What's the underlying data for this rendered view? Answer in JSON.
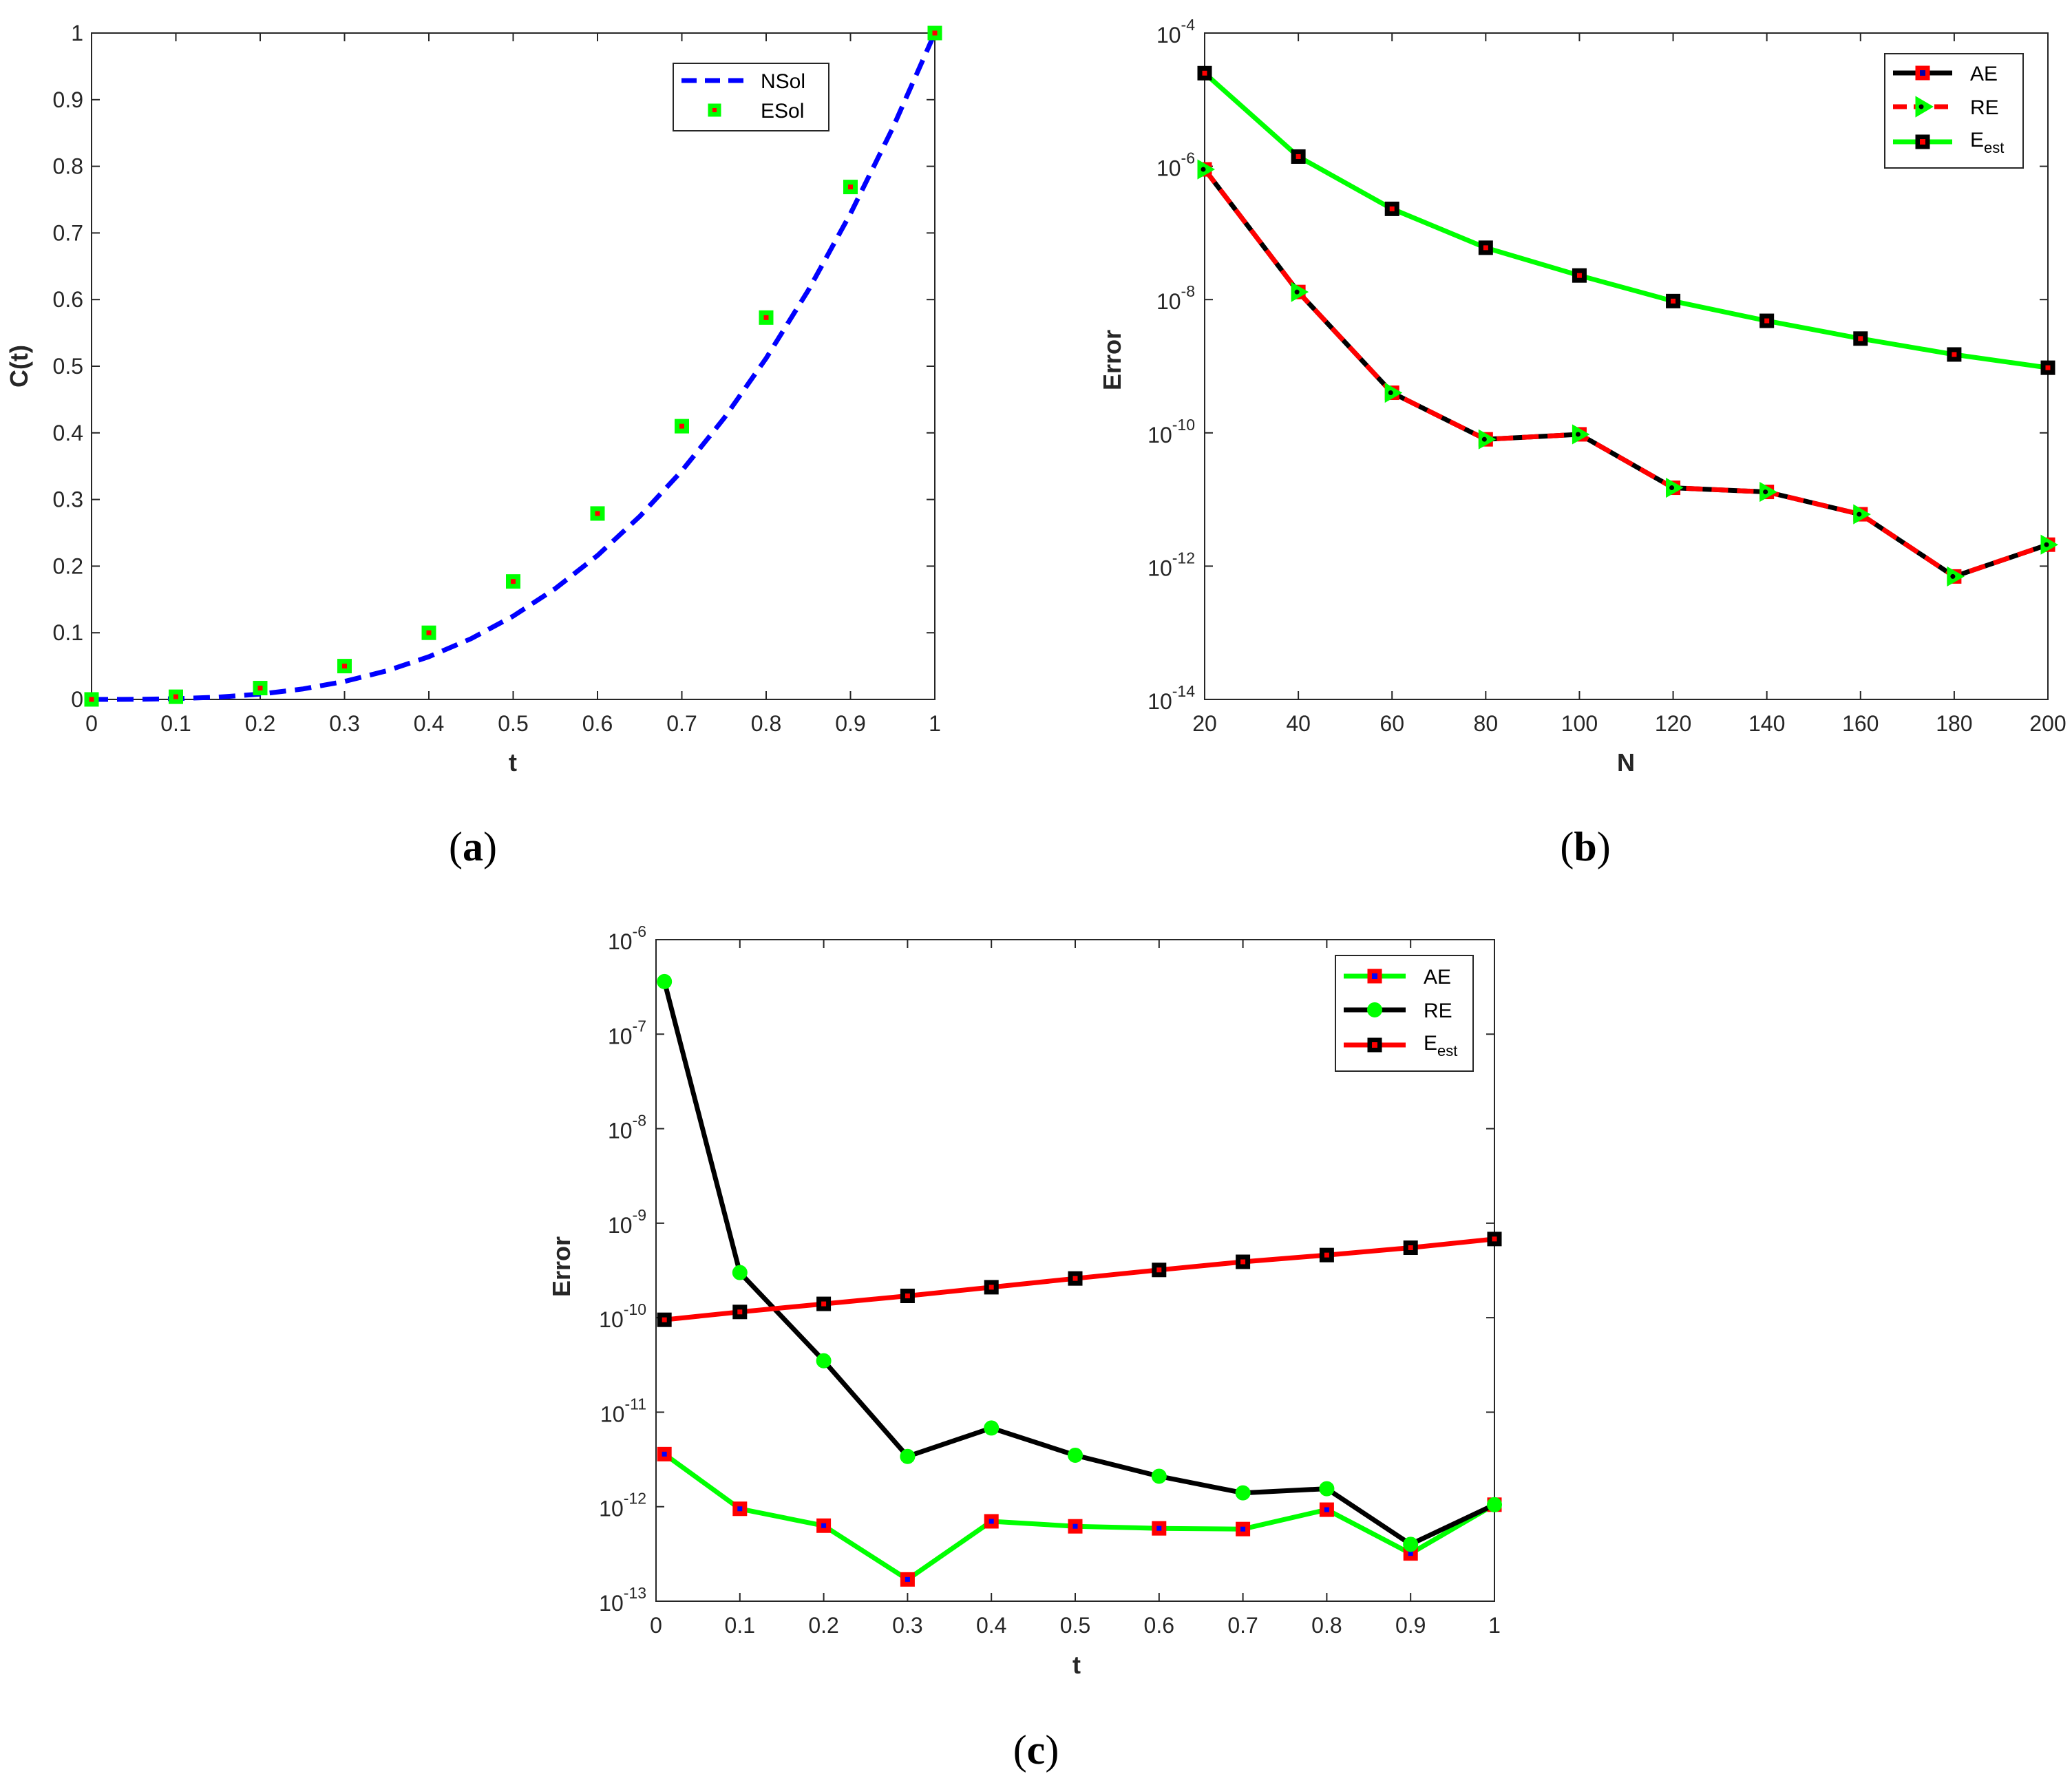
{
  "chart_data": [
    {
      "id": "a",
      "type": "line",
      "caption_letter": "a",
      "xlabel": "t",
      "ylabel": "C(t)",
      "yscale": "linear",
      "xlim": [
        0,
        1
      ],
      "ylim": [
        0,
        1
      ],
      "xticks": [
        0,
        0.1,
        0.2,
        0.3,
        0.4,
        0.5,
        0.6,
        0.7,
        0.8,
        0.9,
        1
      ],
      "xtick_labels": [
        "0",
        "0.1",
        "0.2",
        "0.3",
        "0.4",
        "0.5",
        "0.6",
        "0.7",
        "0.8",
        "0.9",
        "1"
      ],
      "yticks": [
        0,
        0.1,
        0.2,
        0.3,
        0.4,
        0.5,
        0.6,
        0.7,
        0.8,
        0.9,
        1
      ],
      "ytick_labels": [
        "0",
        "0.1",
        "0.2",
        "0.3",
        "0.4",
        "0.5",
        "0.6",
        "0.7",
        "0.8",
        "0.9",
        "1"
      ],
      "legend_position": "top-right",
      "series": [
        {
          "name": "NSol",
          "name_sub": "",
          "color": "#0000ff",
          "dash": true,
          "line": true,
          "marker": "none",
          "marker_fill": "none",
          "marker_edge": "none",
          "marker_center": "none",
          "x": [
            0,
            0.05,
            0.1,
            0.15,
            0.2,
            0.25,
            0.3,
            0.35,
            0.4,
            0.45,
            0.5,
            0.55,
            0.6,
            0.65,
            0.7,
            0.75,
            0.8,
            0.85,
            0.9,
            0.95,
            1
          ],
          "y": [
            0,
            0.000125,
            0.001,
            0.003375,
            0.008,
            0.015625,
            0.027,
            0.042875,
            0.064,
            0.091125,
            0.125,
            0.166375,
            0.216,
            0.274625,
            0.343,
            0.421875,
            0.512,
            0.614125,
            0.729,
            0.857375,
            1
          ]
        },
        {
          "name": "ESol",
          "name_sub": "",
          "color": "#00ff00",
          "dash": false,
          "line": false,
          "marker": "square",
          "marker_fill": "#00ff00",
          "marker_edge": "#00ff00",
          "marker_center": "#ff0000",
          "x": [
            0,
            0.1,
            0.2,
            0.3,
            0.4,
            0.5,
            0.6,
            0.7,
            0.8,
            0.9,
            1
          ],
          "y": [
            0,
            0.004,
            0.017,
            0.05,
            0.1,
            0.177,
            0.279,
            0.41,
            0.573,
            0.769,
            1
          ]
        }
      ]
    },
    {
      "id": "b",
      "type": "line",
      "caption_letter": "b",
      "xlabel": "N",
      "ylabel": "Error",
      "yscale": "log",
      "xlim": [
        20,
        200
      ],
      "ylim": [
        1e-14,
        0.0001
      ],
      "xticks": [
        20,
        40,
        60,
        80,
        100,
        120,
        140,
        160,
        180,
        200
      ],
      "xtick_labels": [
        "20",
        "40",
        "60",
        "80",
        "100",
        "120",
        "140",
        "160",
        "180",
        "200"
      ],
      "yticks": [
        -14,
        -12,
        -10,
        -8,
        -6,
        -4
      ],
      "ytick_labels": [
        "-14",
        "-12",
        "-10",
        "-8",
        "-6",
        "-4"
      ],
      "ytick_base": "10",
      "legend_position": "top-right",
      "series": [
        {
          "name": "AE",
          "name_sub": "",
          "color": "#000000",
          "dash": false,
          "line": true,
          "marker": "square",
          "marker_fill": "#ff0000",
          "marker_edge": "#ff0000",
          "marker_center": "#0000aa",
          "x": [
            20,
            40,
            60,
            80,
            100,
            120,
            140,
            160,
            180,
            200
          ],
          "y": [
            9e-07,
            1.3e-08,
            4e-10,
            8e-11,
            9.5e-11,
            1.5e-11,
            1.3e-11,
            6e-12,
            7e-13,
            2.1e-12
          ]
        },
        {
          "name": "RE",
          "name_sub": "",
          "color": "#ff0000",
          "dash": true,
          "line": true,
          "marker": "triangle",
          "marker_fill": "#00ff00",
          "marker_edge": "#00ff00",
          "marker_center": "#000000",
          "x": [
            20,
            40,
            60,
            80,
            100,
            120,
            140,
            160,
            180,
            200
          ],
          "y": [
            9e-07,
            1.3e-08,
            4e-10,
            8e-11,
            9.5e-11,
            1.5e-11,
            1.3e-11,
            6e-12,
            7e-13,
            2.1e-12
          ]
        },
        {
          "name": "E",
          "name_sub": "est",
          "color": "#00ff00",
          "dash": false,
          "line": true,
          "marker": "square",
          "marker_fill": "#000000",
          "marker_edge": "#000000",
          "marker_center": "#ff0000",
          "x": [
            20,
            40,
            60,
            80,
            100,
            120,
            140,
            160,
            180,
            200
          ],
          "y": [
            2.5e-05,
            1.4e-06,
            2.3e-07,
            6e-08,
            2.3e-08,
            9.5e-09,
            4.8e-09,
            2.6e-09,
            1.5e-09,
            9.5e-10
          ]
        }
      ]
    },
    {
      "id": "c",
      "type": "line",
      "caption_letter": "c",
      "xlabel": "t",
      "ylabel": "Error",
      "yscale": "log",
      "xlim": [
        0,
        1
      ],
      "ylim": [
        1e-13,
        1e-06
      ],
      "xticks": [
        0,
        0.1,
        0.2,
        0.3,
        0.4,
        0.5,
        0.6,
        0.7,
        0.8,
        0.9,
        1
      ],
      "xtick_labels": [
        "0",
        "0.1",
        "0.2",
        "0.3",
        "0.4",
        "0.5",
        "0.6",
        "0.7",
        "0.8",
        "0.9",
        "1"
      ],
      "yticks": [
        -13,
        -12,
        -11,
        -10,
        -9,
        -8,
        -7,
        -6
      ],
      "ytick_labels": [
        "-13",
        "-12",
        "-11",
        "-10",
        "-9",
        "-8",
        "-7",
        "-6"
      ],
      "ytick_base": "10",
      "legend_position": "top-right",
      "series": [
        {
          "name": "AE",
          "name_sub": "",
          "color": "#00ff00",
          "dash": false,
          "line": true,
          "marker": "square",
          "marker_fill": "#ff0000",
          "marker_edge": "#ff0000",
          "marker_center": "#0000ff",
          "x": [
            0.01,
            0.1,
            0.2,
            0.3,
            0.4,
            0.5,
            0.6,
            0.7,
            0.8,
            0.9,
            1
          ],
          "y": [
            3.6e-12,
            9.5e-13,
            6.3e-13,
            1.7e-13,
            7e-13,
            6.2e-13,
            5.9e-13,
            5.8e-13,
            9.3e-13,
            3.2e-13,
            1.05e-12
          ]
        },
        {
          "name": "RE",
          "name_sub": "",
          "color": "#000000",
          "dash": false,
          "line": true,
          "marker": "circle",
          "marker_fill": "#00ff00",
          "marker_edge": "#00ff00",
          "marker_center": "none",
          "x": [
            0.01,
            0.1,
            0.2,
            0.3,
            0.4,
            0.5,
            0.6,
            0.7,
            0.8,
            0.9,
            1
          ],
          "y": [
            3.6e-07,
            3e-10,
            3.5e-11,
            3.4e-12,
            6.8e-12,
            3.5e-12,
            2.1e-12,
            1.4e-12,
            1.55e-12,
            4e-13,
            1.05e-12
          ]
        },
        {
          "name": "E",
          "name_sub": "est",
          "color": "#ff0000",
          "dash": false,
          "line": true,
          "marker": "square",
          "marker_fill": "#000000",
          "marker_edge": "#000000",
          "marker_center": "#ff0000",
          "x": [
            0.01,
            0.1,
            0.2,
            0.3,
            0.4,
            0.5,
            0.6,
            0.7,
            0.8,
            0.9,
            1
          ],
          "y": [
            9.5e-11,
            1.15e-10,
            1.4e-10,
            1.7e-10,
            2.1e-10,
            2.6e-10,
            3.2e-10,
            3.9e-10,
            4.6e-10,
            5.5e-10,
            6.8e-10
          ]
        }
      ]
    }
  ]
}
